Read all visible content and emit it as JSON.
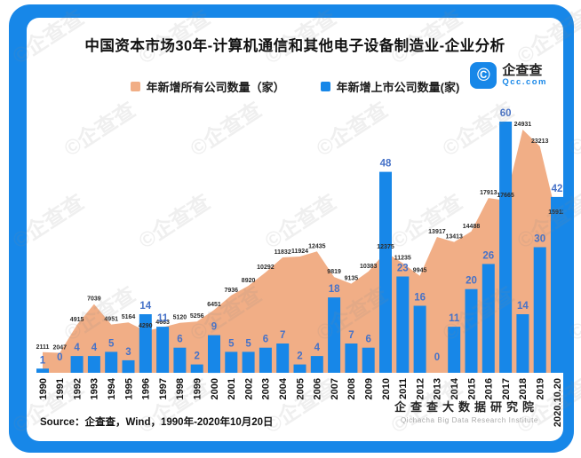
{
  "title": "中国资本市场30年-计算机通信和其他电子设备制造业-企业分析",
  "logo": {
    "name_cn": "企查查",
    "domain": "Qcc.com",
    "glyph": "©",
    "brand_color": "#1787E8"
  },
  "legend": {
    "items": [
      {
        "label": "年新增所有公司数量（家）",
        "color": "#F1AE86"
      },
      {
        "label": "年新增上市公司数量(家)",
        "color": "#1787E8"
      }
    ]
  },
  "source": {
    "text": "Source：企查查，Wind，1990年-2020年10月20日"
  },
  "footer": {
    "institute_cn": "企查查大数据研究院",
    "institute_en": "Qichacha Big Data Research Institute"
  },
  "watermark_text": "©企查查",
  "colors": {
    "frame_blue": "#1787E8",
    "bar_blue": "#1787E8",
    "area_orange": "#F1AE86",
    "bar_value_label": "#4672C8",
    "area_value_label": "#2b2b2b"
  },
  "chart_data": {
    "type": "combo (area + bar)",
    "title": "中国资本市场30年-计算机通信和其他电子设备制造业-企业分析",
    "categories": [
      "1990",
      "1991",
      "1992",
      "1993",
      "1994",
      "1995",
      "1996",
      "1997",
      "1998",
      "1999",
      "2000",
      "2001",
      "2002",
      "2003",
      "2004",
      "2005",
      "2006",
      "2007",
      "2008",
      "2009",
      "2010",
      "2011",
      "2012",
      "2013",
      "2014",
      "2015",
      "2016",
      "2017",
      "2018",
      "2019",
      "2020.10.20"
    ],
    "series": [
      {
        "name": "年新增所有公司数量（家）",
        "type": "area",
        "color": "#F1AE86",
        "values": [
          2111,
          2047,
          4915,
          7039,
          4951,
          5164,
          4290,
          4663,
          5120,
          5256,
          6451,
          7936,
          8920,
          10292,
          11832,
          11924,
          12435,
          9819,
          9135,
          10383,
          12375,
          11235,
          9945,
          13917,
          13413,
          14488,
          17913,
          17665,
          24931,
          23213,
          15912
        ]
      },
      {
        "name": "年新增上市公司数量(家)",
        "type": "bar",
        "color": "#1787E8",
        "values": [
          1,
          0,
          4,
          4,
          5,
          3,
          14,
          11,
          6,
          2,
          9,
          5,
          5,
          6,
          7,
          2,
          4,
          18,
          7,
          6,
          48,
          23,
          16,
          0,
          11,
          20,
          26,
          60,
          14,
          30,
          42
        ]
      }
    ],
    "ylim_bar": [
      0,
      63
    ],
    "ylim_area": [
      0,
      26000
    ],
    "grid": false,
    "legend_position": "top-center",
    "data_labels": "all points labeled"
  }
}
